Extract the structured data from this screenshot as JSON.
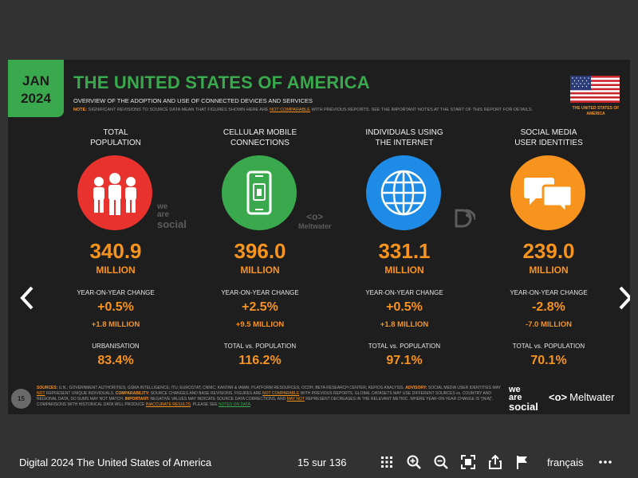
{
  "slide": {
    "badge_month": "JAN",
    "badge_year": "2024",
    "title": "THE UNITED STATES OF AMERICA",
    "subtitle": "OVERVIEW OF THE ADOPTION AND USE OF CONNECTED DEVICES AND SERVICES",
    "note_label": "NOTE:",
    "note_text_1": "SIGNIFICANT REVISIONS TO SOURCE DATA MEAN THAT FIGURES SHOWN HERE ARE",
    "note_not_comparable": "NOT COMPARABLE",
    "note_text_2": "WITH PREVIOUS REPORTS. SEE THE IMPORTANT NOTES AT THE START OF THIS REPORT FOR DETAILS.",
    "flag_label": "THE UNITED STATES OF AMERICA",
    "columns": [
      {
        "label_1": "TOTAL",
        "label_2": "POPULATION",
        "value": "340.9",
        "unit": "MILLION",
        "yoy_label": "YEAR-ON-YEAR CHANGE",
        "yoy_pct": "+0.5%",
        "yoy_abs": "+1.8 MILLION",
        "sub_label": "URBANISATION",
        "sub_value": "83.4%",
        "icon": "people-icon",
        "color": "#e8322e"
      },
      {
        "label_1": "CELLULAR MOBILE",
        "label_2": "CONNECTIONS",
        "value": "396.0",
        "unit": "MILLION",
        "yoy_label": "YEAR-ON-YEAR CHANGE",
        "yoy_pct": "+2.5%",
        "yoy_abs": "+9.5 MILLION",
        "sub_label": "TOTAL vs. POPULATION",
        "sub_value": "116.2%",
        "icon": "mobile-phone-icon",
        "color": "#3aa84d"
      },
      {
        "label_1": "INDIVIDUALS USING",
        "label_2": "THE INTERNET",
        "value": "331.1",
        "unit": "MILLION",
        "yoy_label": "YEAR-ON-YEAR CHANGE",
        "yoy_pct": "+0.5%",
        "yoy_abs": "+1.8 MILLION",
        "sub_label": "TOTAL vs. POPULATION",
        "sub_value": "97.1%",
        "icon": "globe-icon",
        "color": "#1e8ce6"
      },
      {
        "label_1": "SOCIAL MEDIA",
        "label_2": "USER IDENTITIES",
        "value": "239.0",
        "unit": "MILLION",
        "yoy_label": "YEAR-ON-YEAR CHANGE",
        "yoy_pct": "-2.8%",
        "yoy_abs": "-7.0 MILLION",
        "sub_label": "TOTAL vs. POPULATION",
        "sub_value": "70.1%",
        "icon": "chat-bubbles-icon",
        "color": "#f7941d"
      }
    ],
    "watermark_social": [
      "we",
      "are",
      "social"
    ],
    "watermark_meltwater": "Meltwater",
    "sources_label": "SOURCES:",
    "sources_text_1": "U.N.; GOVERNMENT AUTHORITIES; GSMA INTELLIGENCE; ITU; EUROSTAT; CNNIC; KANTAR & IAMAI; PLATFORM RESOURCES; OCDH; BETA RESEARCH CENTER; KEPIOS ANALYSIS.",
    "advisory_label": "ADVISORY:",
    "sources_text_2": "SOCIAL MEDIA USER IDENTITIES MAY",
    "not_1": "NOT",
    "sources_text_3": "REPRESENT UNIQUE INDIVIDUALS.",
    "comparability_label": "COMPARABILITY:",
    "sources_text_4": "SOURCE CHANGES AND BASE REVISIONS. FIGURES ARE",
    "not_comparable": "NOT COMPARABLE",
    "sources_text_5": "WITH PREVIOUS REPORTS. GLOBAL DATASETS MAY USE DIFFERENT SOURCES vs. COUNTRY AND REGIONAL DATA, SO SUMS MAY NOT MATCH.",
    "important_label": "IMPORTANT:",
    "sources_text_6": "NEGATIVE VALUES MAY INDICATE SOURCE DATA CORRECTIONS, AND",
    "may_not": "MAY NOT",
    "sources_text_7": "REPRESENT DECREASES IN THE RELEVANT METRIC. WHERE YEAR-ON-YEAR CHANGE IS \"[N/A]\", COMPARISONS WITH HISTORICAL DATA WILL PRODUCE",
    "inaccurate_results": "INACCURATE RESULTS",
    "sources_text_8": ". PLEASE SEE",
    "notes_on_data": "NOTES ON DATA",
    "sources_text_9": ".",
    "page_number": "15",
    "logo_social": [
      "we",
      "are",
      "social"
    ],
    "logo_meltwater": "Meltwater"
  },
  "viewer": {
    "document_title": "Digital 2024 The United States of America",
    "page_indicator": "15 sur 136",
    "language": "français",
    "icons": [
      "grid-view-icon",
      "zoom-in-icon",
      "zoom-out-icon",
      "fullscreen-icon",
      "share-icon",
      "flag-icon",
      "more-icon"
    ]
  }
}
